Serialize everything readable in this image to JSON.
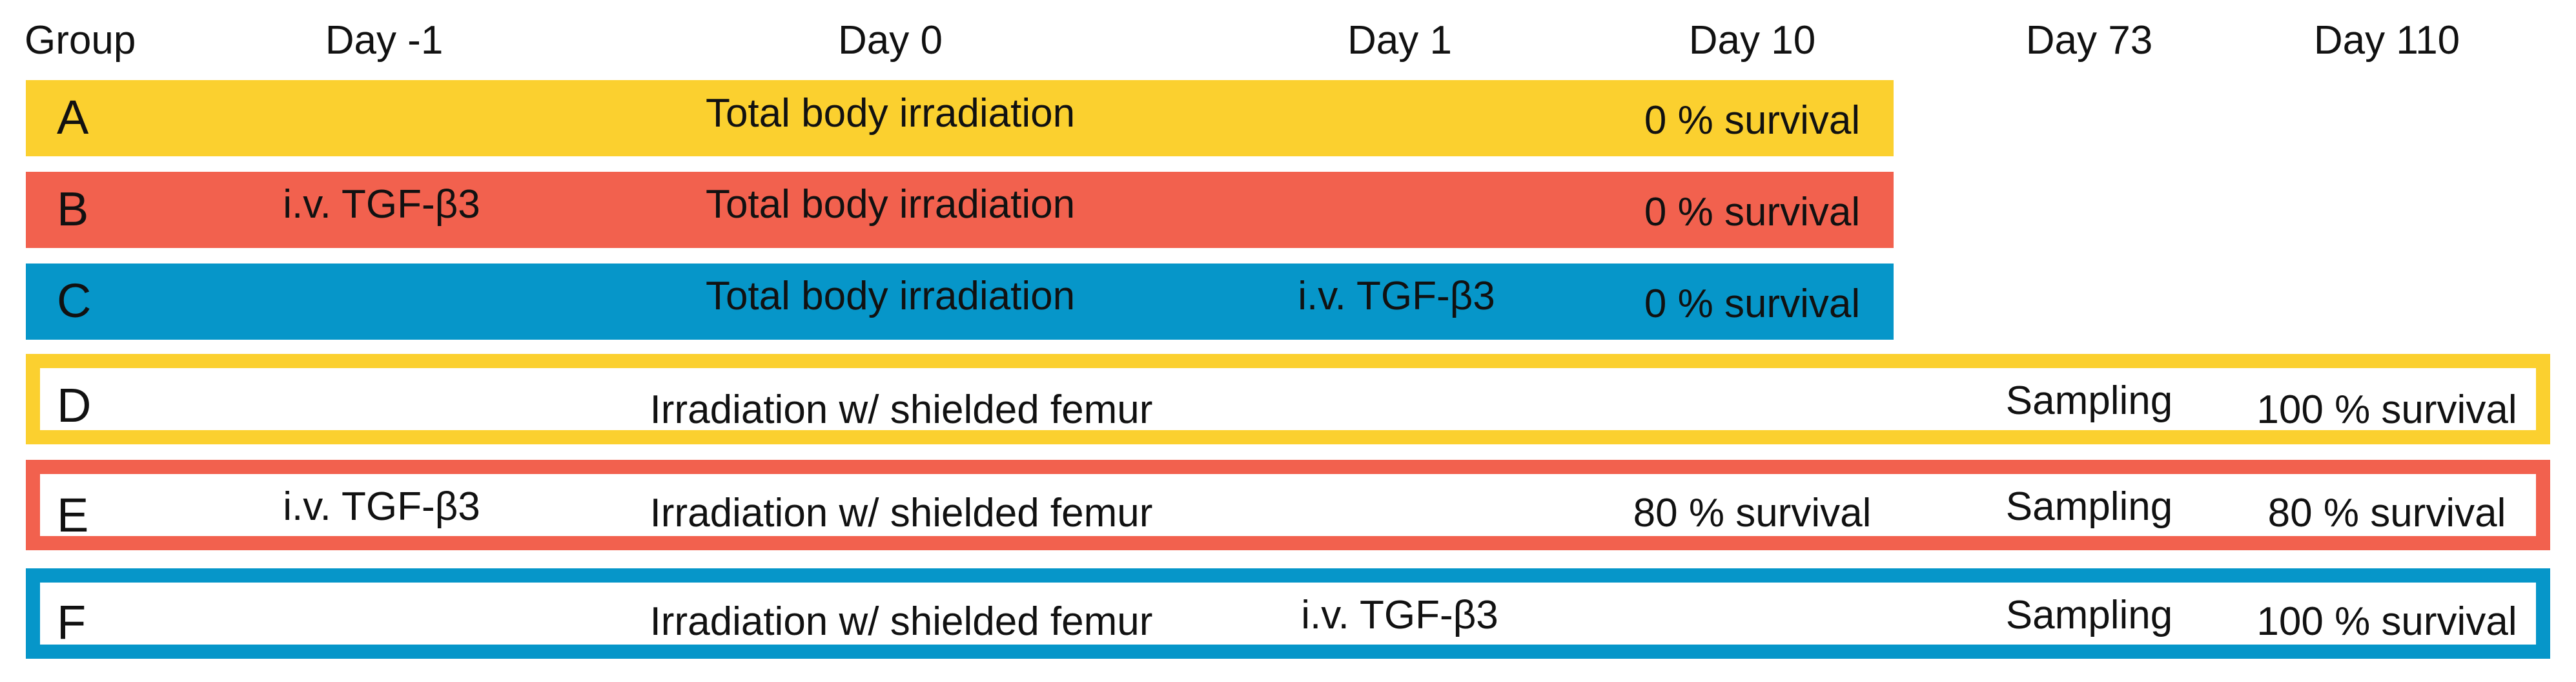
{
  "colors": {
    "yellow": "#FBD02F",
    "red": "#F2614E",
    "blue": "#0696C9"
  },
  "headers": {
    "group": "Group",
    "day_minus1": "Day -1",
    "day0": "Day 0",
    "day1": "Day 1",
    "day10": "Day 10",
    "day73": "Day 73",
    "day110": "Day 110"
  },
  "groups": [
    {
      "letter": "A",
      "color": "yellow",
      "style": "solid",
      "day_minus1": "",
      "day0": "Total body irradiation",
      "day1": "",
      "day10": "0 % survival",
      "day73": "",
      "day110": ""
    },
    {
      "letter": "B",
      "color": "red",
      "style": "solid",
      "day_minus1": "i.v. TGF-β3",
      "day0": "Total body irradiation",
      "day1": "",
      "day10": "0 % survival",
      "day73": "",
      "day110": ""
    },
    {
      "letter": "C",
      "color": "blue",
      "style": "solid",
      "day_minus1": "",
      "day0": "Total body irradiation",
      "day1": "i.v. TGF-β3",
      "day10": "0 % survival",
      "day73": "",
      "day110": ""
    },
    {
      "letter": "D",
      "color": "yellow",
      "style": "outline",
      "day_minus1": "",
      "day0": "Irradiation w/ shielded femur",
      "day1": "",
      "day10": "",
      "day73": "Sampling",
      "day110": "100 % survival"
    },
    {
      "letter": "E",
      "color": "red",
      "style": "outline",
      "day_minus1": "i.v. TGF-β3",
      "day0": "Irradiation w/ shielded femur",
      "day1": "",
      "day10": "80 % survival",
      "day73": "Sampling",
      "day110": "80 % survival"
    },
    {
      "letter": "F",
      "color": "blue",
      "style": "outline",
      "day_minus1": "",
      "day0": "Irradiation w/ shielded femur",
      "day1": "i.v. TGF-β3",
      "day10": "",
      "day73": "Sampling",
      "day110": "100 % survival"
    }
  ]
}
